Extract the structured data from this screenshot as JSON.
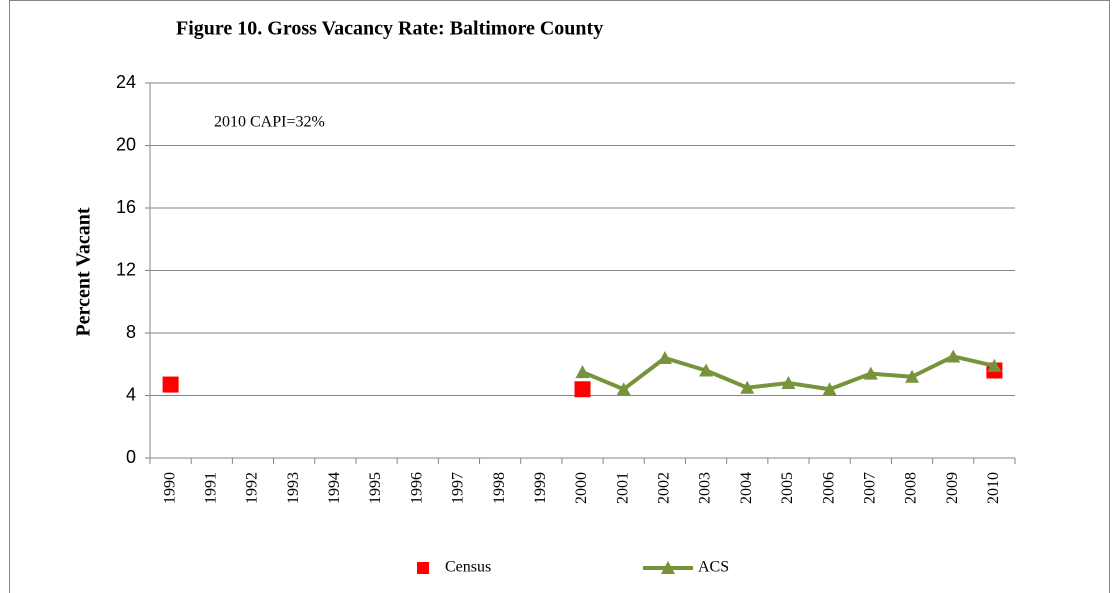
{
  "chart_data": {
    "type": "line",
    "title": "Figure 10. Gross Vacancy Rate:  Baltimore County",
    "y_label": "Percent Vacant",
    "annotation": "2010 CAPI=32%",
    "categories": [
      "1990",
      "1991",
      "1992",
      "1993",
      "1994",
      "1995",
      "1996",
      "1997",
      "1998",
      "1999",
      "2000",
      "2001",
      "2002",
      "2003",
      "2004",
      "2005",
      "2006",
      "2007",
      "2008",
      "2009",
      "2010"
    ],
    "series": [
      {
        "name": "Census",
        "color": "#ff0000",
        "marker": "square",
        "show_line": false,
        "values": [
          4.7,
          null,
          null,
          null,
          null,
          null,
          null,
          null,
          null,
          null,
          4.4,
          null,
          null,
          null,
          null,
          null,
          null,
          null,
          null,
          null,
          5.6
        ]
      },
      {
        "name": "ACS",
        "color": "#77933c",
        "marker": "triangle",
        "show_line": true,
        "values": [
          null,
          null,
          null,
          null,
          null,
          null,
          null,
          null,
          null,
          null,
          5.5,
          4.4,
          6.4,
          5.6,
          4.5,
          4.8,
          4.4,
          5.4,
          5.2,
          6.5,
          5.9
        ]
      }
    ],
    "ylim": [
      0,
      24
    ],
    "yticks": [
      0,
      4,
      8,
      12,
      16,
      20,
      24
    ],
    "grid": true,
    "legend": "bottom"
  }
}
